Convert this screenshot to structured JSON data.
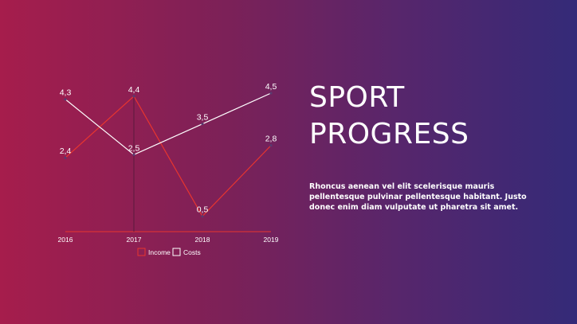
{
  "slide": {
    "title_line1": "SPORT",
    "title_line2": "PROGRESS",
    "description": "Rhoncus aenean vel elit scelerisque mauris pellentesque pulvinar pellentesque habitant. Justo donec enim diam vulputate ut pharetra sit amet."
  },
  "chart_data": {
    "type": "line",
    "title": "",
    "xlabel": "",
    "ylabel": "",
    "categories": [
      "2016",
      "2017",
      "2018",
      "2019"
    ],
    "series": [
      {
        "name": "Income",
        "values": [
          2.4,
          4.4,
          0.5,
          2.8
        ],
        "labels": [
          "2,4",
          "4,4",
          "0,5",
          "2,8"
        ],
        "color": "#e8352f"
      },
      {
        "name": "Costs",
        "values": [
          4.3,
          2.5,
          3.5,
          4.5
        ],
        "labels": [
          "4,3",
          "2,5",
          "3,5",
          "4,5"
        ],
        "color": "#ffffff"
      }
    ],
    "ylim": [
      0,
      4.5
    ],
    "grid": false,
    "legend": "bottom",
    "axis_color": "#e8352f"
  }
}
